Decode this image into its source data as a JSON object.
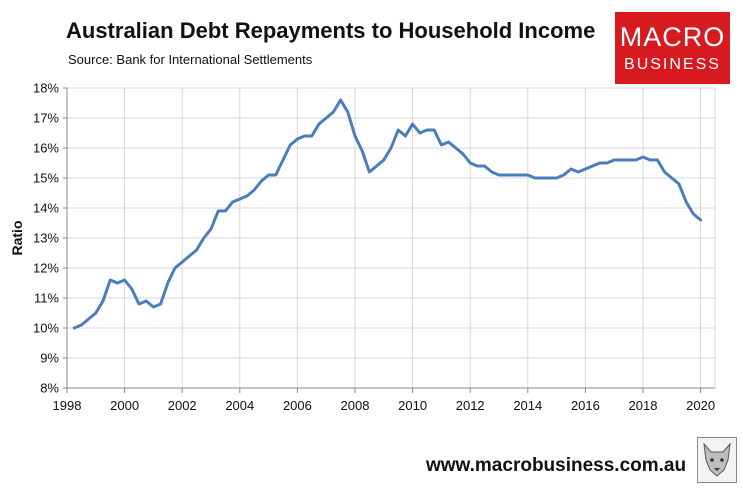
{
  "header": {
    "title": "Australian Debt Repayments to Household Income",
    "subtitle": "Source: Bank for International Settlements"
  },
  "logo": {
    "line1": "MACRO",
    "line2": "BUSINESS",
    "color": "#d71920"
  },
  "footer": {
    "website": "www.macrobusiness.com.au",
    "icon": "wolf-icon"
  },
  "colors": {
    "line": "#4a7ebb",
    "grid": "#d9d9d9",
    "axis": "#888888"
  },
  "chart_data": {
    "type": "line",
    "title": "Australian Debt Repayments to Household Income",
    "subtitle": "Source: Bank for International Settlements",
    "xlabel": "",
    "ylabel": "Ratio",
    "xlim": [
      1998,
      2020.5
    ],
    "ylim": [
      8,
      18
    ],
    "grid": true,
    "legend": "none",
    "x_ticks": [
      1998,
      2000,
      2002,
      2004,
      2006,
      2008,
      2010,
      2012,
      2014,
      2016,
      2018,
      2020
    ],
    "x_tick_labels": [
      "1998",
      "2000",
      "2002",
      "2004",
      "2006",
      "2008",
      "2010",
      "2012",
      "2014",
      "2016",
      "2018",
      "2020"
    ],
    "y_ticks": [
      8,
      9,
      10,
      11,
      12,
      13,
      14,
      15,
      16,
      17,
      18
    ],
    "y_tick_labels": [
      "8%",
      "9%",
      "10%",
      "11%",
      "12%",
      "13%",
      "14%",
      "15%",
      "16%",
      "17%",
      "18%"
    ],
    "series": [
      {
        "x": [
          1998.25,
          1998.5,
          1998.75,
          1999.0,
          1999.25,
          1999.5,
          1999.75,
          2000.0,
          2000.25,
          2000.5,
          2000.75,
          2001.0,
          2001.25,
          2001.5,
          2001.75,
          2002.0,
          2002.25,
          2002.5,
          2002.75,
          2003.0,
          2003.25,
          2003.5,
          2003.75,
          2004.0,
          2004.25,
          2004.5,
          2004.75,
          2005.0,
          2005.25,
          2005.5,
          2005.75,
          2006.0,
          2006.25,
          2006.5,
          2006.75,
          2007.0,
          2007.25,
          2007.5,
          2007.75,
          2008.0,
          2008.25,
          2008.5,
          2008.75,
          2009.0,
          2009.25,
          2009.5,
          2009.75,
          2010.0,
          2010.25,
          2010.5,
          2010.75,
          2011.0,
          2011.25,
          2011.5,
          2011.75,
          2012.0,
          2012.25,
          2012.5,
          2012.75,
          2013.0,
          2013.25,
          2013.5,
          2013.75,
          2014.0,
          2014.25,
          2014.5,
          2014.75,
          2015.0,
          2015.25,
          2015.5,
          2015.75,
          2016.0,
          2016.25,
          2016.5,
          2016.75,
          2017.0,
          2017.25,
          2017.5,
          2017.75,
          2018.0,
          2018.25,
          2018.5,
          2018.75,
          2019.0,
          2019.25,
          2019.5,
          2019.75,
          2020.0
        ],
        "values": [
          10.0,
          10.1,
          10.3,
          10.5,
          10.9,
          11.6,
          11.5,
          11.6,
          11.3,
          10.8,
          10.9,
          10.7,
          10.8,
          11.5,
          12.0,
          12.2,
          12.4,
          12.6,
          13.0,
          13.3,
          13.9,
          13.9,
          14.2,
          14.3,
          14.4,
          14.6,
          14.9,
          15.1,
          15.1,
          15.6,
          16.1,
          16.3,
          16.4,
          16.4,
          16.8,
          17.0,
          17.2,
          17.6,
          17.2,
          16.4,
          15.9,
          15.2,
          15.4,
          15.6,
          16.0,
          16.6,
          16.4,
          16.8,
          16.5,
          16.6,
          16.6,
          16.1,
          16.2,
          16.0,
          15.8,
          15.5,
          15.4,
          15.4,
          15.2,
          15.1,
          15.1,
          15.1,
          15.1,
          15.1,
          15.0,
          15.0,
          15.0,
          15.0,
          15.1,
          15.3,
          15.2,
          15.3,
          15.4,
          15.5,
          15.5,
          15.6,
          15.6,
          15.6,
          15.6,
          15.7,
          15.6,
          15.6,
          15.2,
          15.0,
          14.8,
          14.2,
          13.8,
          13.6
        ]
      }
    ]
  }
}
